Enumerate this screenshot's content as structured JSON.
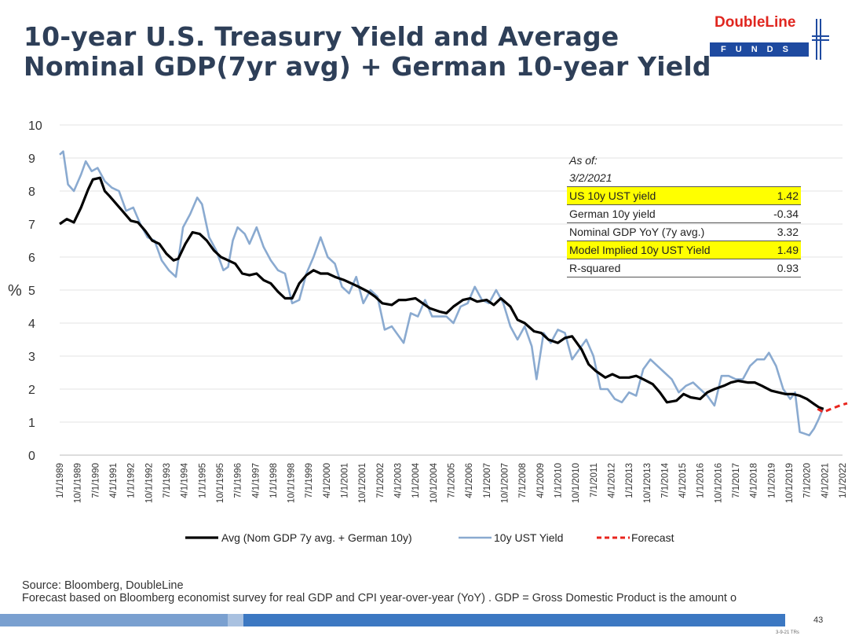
{
  "title_lines": [
    "10-year U.S. Treasury Yield and Average",
    "Nominal GDP(7yr avg) + German 10-year Yield"
  ],
  "logo": {
    "name": "DoubleLine",
    "sub": "FUNDS"
  },
  "colors": {
    "avg": "#000000",
    "ust": "#8aaad0",
    "forecast": "#e8251e",
    "title": "#2e3f58",
    "highlight": "#ffff00",
    "logo_red": "#e0261f",
    "logo_blue": "#1e4aa0"
  },
  "info_box": {
    "as_of_label": "As of:",
    "as_of_date": "3/2/2021",
    "rows": [
      {
        "label": "US 10y UST yield",
        "value": "1.42",
        "highlight": true
      },
      {
        "label": "German 10y yield",
        "value": "-0.34",
        "highlight": false
      },
      {
        "label": "Nominal GDP YoY (7y avg.)",
        "value": "3.32",
        "highlight": false
      },
      {
        "label": "Model Implied 10y UST Yield",
        "value": "1.49",
        "highlight": true
      },
      {
        "label": "R-squared",
        "value": "0.93",
        "highlight": false
      }
    ]
  },
  "source_line": "Source: Bloomberg, DoubleLine",
  "forecast_note": "Forecast based on Bloomberg economist survey for real GDP and CPI year-over-year (YoY) . GDP = Gross Domestic Product is the amount o",
  "page_number": "43",
  "footnote": "3-9-21 TRs",
  "chart_data": {
    "type": "line",
    "ylabel": "%",
    "ylim": [
      0,
      10
    ],
    "yticks": [
      "0",
      "1",
      "2",
      "3",
      "4",
      "5",
      "6",
      "7",
      "8",
      "9",
      "10"
    ],
    "x_tick_labels": [
      "1/1/1989",
      "10/1/1989",
      "7/1/1990",
      "4/1/1991",
      "1/1/1992",
      "10/1/1992",
      "7/1/1993",
      "4/1/1994",
      "1/1/1995",
      "10/1/1995",
      "7/1/1996",
      "4/1/1997",
      "1/1/1998",
      "10/1/1998",
      "7/1/1999",
      "4/1/2000",
      "1/1/2001",
      "10/1/2001",
      "7/1/2002",
      "4/1/2003",
      "1/1/2004",
      "10/1/2004",
      "7/1/2005",
      "4/1/2006",
      "1/1/2007",
      "10/1/2007",
      "7/1/2008",
      "4/1/2009",
      "1/1/2010",
      "10/1/2010",
      "7/1/2011",
      "4/1/2012",
      "1/1/2013",
      "10/1/2013",
      "7/1/2014",
      "4/1/2015",
      "1/1/2016",
      "10/1/2016",
      "7/1/2017",
      "4/1/2018",
      "1/1/2019",
      "10/1/2019",
      "7/1/2020",
      "4/1/2021",
      "1/1/2022"
    ],
    "x_range": [
      1989.0,
      2022.0
    ],
    "grid": true,
    "legend_position": "bottom",
    "series": [
      {
        "name": "Avg (Nom GDP 7y avg. + German 10y)",
        "style": "solid-black",
        "x": [
          1989.0,
          1989.3,
          1989.6,
          1989.9,
          1990.2,
          1990.4,
          1990.7,
          1990.9,
          1991.1,
          1991.4,
          1991.7,
          1992.0,
          1992.3,
          1992.6,
          1992.9,
          1993.2,
          1993.5,
          1993.8,
          1994.0,
          1994.3,
          1994.6,
          1994.9,
          1995.2,
          1995.5,
          1995.8,
          1996.1,
          1996.4,
          1996.7,
          1997.0,
          1997.3,
          1997.6,
          1997.9,
          1998.2,
          1998.5,
          1998.8,
          1999.1,
          1999.4,
          1999.7,
          2000.0,
          2000.3,
          2000.6,
          2001.0,
          2001.3,
          2001.6,
          2002.0,
          2002.3,
          2002.6,
          2003.0,
          2003.3,
          2003.6,
          2004.0,
          2004.3,
          2004.6,
          2005.0,
          2005.3,
          2005.6,
          2006.0,
          2006.3,
          2006.6,
          2007.0,
          2007.3,
          2007.6,
          2008.0,
          2008.3,
          2008.6,
          2009.0,
          2009.3,
          2009.6,
          2010.0,
          2010.3,
          2010.6,
          2011.0,
          2011.3,
          2011.6,
          2012.0,
          2012.3,
          2012.6,
          2013.0,
          2013.3,
          2013.6,
          2014.0,
          2014.3,
          2014.6,
          2015.0,
          2015.3,
          2015.6,
          2016.0,
          2016.3,
          2016.6,
          2017.0,
          2017.3,
          2017.6,
          2018.0,
          2018.3,
          2018.6,
          2019.0,
          2019.3,
          2019.6,
          2019.9,
          2020.2,
          2020.5,
          2020.8,
          2021.0,
          2021.2
        ],
        "y": [
          7.0,
          7.15,
          7.05,
          7.5,
          8.05,
          8.35,
          8.4,
          8.0,
          7.85,
          7.6,
          7.35,
          7.1,
          7.05,
          6.8,
          6.5,
          6.4,
          6.1,
          5.9,
          5.95,
          6.4,
          6.75,
          6.7,
          6.5,
          6.2,
          6.0,
          5.9,
          5.8,
          5.5,
          5.45,
          5.5,
          5.3,
          5.2,
          4.95,
          4.75,
          4.75,
          5.2,
          5.45,
          5.6,
          5.5,
          5.5,
          5.4,
          5.3,
          5.2,
          5.1,
          4.95,
          4.8,
          4.6,
          4.55,
          4.7,
          4.7,
          4.75,
          4.6,
          4.45,
          4.35,
          4.3,
          4.5,
          4.7,
          4.75,
          4.65,
          4.7,
          4.55,
          4.75,
          4.5,
          4.1,
          4.0,
          3.75,
          3.7,
          3.5,
          3.4,
          3.55,
          3.6,
          3.2,
          2.75,
          2.55,
          2.35,
          2.45,
          2.35,
          2.35,
          2.4,
          2.3,
          2.15,
          1.9,
          1.6,
          1.65,
          1.85,
          1.75,
          1.7,
          1.9,
          2.0,
          2.1,
          2.2,
          2.25,
          2.2,
          2.2,
          2.1,
          1.95,
          1.9,
          1.85,
          1.85,
          1.8,
          1.7,
          1.55,
          1.45,
          1.4
        ]
      },
      {
        "name": "10y UST Yield",
        "style": "solid-lightblue",
        "x": [
          1989.0,
          1989.15,
          1989.35,
          1989.6,
          1989.9,
          1990.1,
          1990.35,
          1990.6,
          1990.9,
          1991.2,
          1991.5,
          1991.8,
          1992.1,
          1992.4,
          1992.7,
          1993.0,
          1993.3,
          1993.6,
          1993.9,
          1994.2,
          1994.5,
          1994.8,
          1995.0,
          1995.3,
          1995.6,
          1995.9,
          1996.1,
          1996.3,
          1996.5,
          1996.8,
          1997.0,
          1997.3,
          1997.6,
          1997.9,
          1998.2,
          1998.5,
          1998.8,
          1999.1,
          1999.4,
          1999.7,
          2000.0,
          2000.3,
          2000.6,
          2000.9,
          2001.2,
          2001.5,
          2001.8,
          2002.1,
          2002.4,
          2002.7,
          2003.0,
          2003.3,
          2003.5,
          2003.8,
          2004.1,
          2004.4,
          2004.7,
          2005.0,
          2005.3,
          2005.6,
          2005.9,
          2006.2,
          2006.5,
          2006.8,
          2007.1,
          2007.4,
          2007.7,
          2008.0,
          2008.3,
          2008.6,
          2008.9,
          2009.1,
          2009.4,
          2009.7,
          2010.0,
          2010.3,
          2010.6,
          2010.9,
          2011.2,
          2011.5,
          2011.8,
          2012.1,
          2012.4,
          2012.7,
          2013.0,
          2013.3,
          2013.6,
          2013.9,
          2014.2,
          2014.5,
          2014.8,
          2015.1,
          2015.4,
          2015.7,
          2016.0,
          2016.3,
          2016.6,
          2016.9,
          2017.2,
          2017.5,
          2017.8,
          2018.1,
          2018.4,
          2018.7,
          2018.9,
          2019.2,
          2019.5,
          2019.8,
          2020.0,
          2020.2,
          2020.4,
          2020.6,
          2020.8,
          2021.0,
          2021.17
        ],
        "y": [
          9.1,
          9.2,
          8.2,
          8.0,
          8.5,
          8.9,
          8.6,
          8.7,
          8.3,
          8.1,
          8.0,
          7.4,
          7.5,
          7.0,
          6.6,
          6.5,
          5.9,
          5.6,
          5.4,
          6.9,
          7.3,
          7.8,
          7.6,
          6.6,
          6.2,
          5.6,
          5.7,
          6.5,
          6.9,
          6.7,
          6.4,
          6.9,
          6.3,
          5.9,
          5.6,
          5.5,
          4.6,
          4.7,
          5.5,
          6.0,
          6.6,
          6.0,
          5.8,
          5.1,
          4.9,
          5.4,
          4.6,
          5.0,
          4.8,
          3.8,
          3.9,
          3.6,
          3.4,
          4.3,
          4.2,
          4.7,
          4.2,
          4.2,
          4.2,
          4.0,
          4.5,
          4.6,
          5.1,
          4.7,
          4.6,
          5.0,
          4.6,
          3.9,
          3.5,
          3.9,
          3.3,
          2.3,
          3.7,
          3.4,
          3.8,
          3.7,
          2.9,
          3.2,
          3.5,
          3.0,
          2.0,
          2.0,
          1.7,
          1.6,
          1.9,
          1.8,
          2.6,
          2.9,
          2.7,
          2.5,
          2.3,
          1.9,
          2.1,
          2.2,
          2.0,
          1.8,
          1.5,
          2.4,
          2.4,
          2.3,
          2.3,
          2.7,
          2.9,
          2.9,
          3.1,
          2.7,
          2.0,
          1.7,
          1.9,
          0.7,
          0.65,
          0.6,
          0.8,
          1.1,
          1.4
        ]
      },
      {
        "name": "Forecast",
        "style": "dashed-red",
        "x": [
          2020.95,
          2021.2,
          2021.45,
          2021.7,
          2021.95,
          2022.2
        ],
        "y": [
          1.4,
          1.3,
          1.38,
          1.45,
          1.52,
          1.57
        ]
      }
    ]
  }
}
